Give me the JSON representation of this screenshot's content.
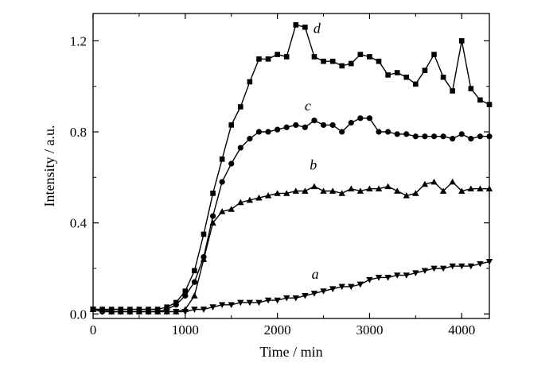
{
  "chart_data": {
    "type": "line",
    "xlabel": "Time / min",
    "ylabel": "Intensity / a.u.",
    "xlim": [
      0,
      4300
    ],
    "ylim": [
      -0.02,
      1.32
    ],
    "xticks": [
      0,
      1000,
      2000,
      3000,
      4000
    ],
    "yticks": [
      0.0,
      0.4,
      0.8,
      1.2
    ],
    "xtick_labels": [
      "0",
      "1000",
      "2000",
      "3000",
      "4000"
    ],
    "ytick_labels": [
      "0.0",
      "0.4",
      "0.8",
      "1.2"
    ],
    "grid": false,
    "series": [
      {
        "name": "a",
        "marker": "triangle-down",
        "x": [
          0,
          100,
          200,
          300,
          400,
          500,
          600,
          700,
          800,
          900,
          1000,
          1100,
          1200,
          1300,
          1400,
          1500,
          1600,
          1700,
          1800,
          1900,
          2000,
          2100,
          2200,
          2300,
          2400,
          2500,
          2600,
          2700,
          2800,
          2900,
          3000,
          3100,
          3200,
          3300,
          3400,
          3500,
          3600,
          3700,
          3800,
          3900,
          4000,
          4100,
          4200,
          4300
        ],
        "y": [
          0.02,
          0.01,
          0.01,
          0.01,
          0.01,
          0.01,
          0.01,
          0.01,
          0.01,
          0.01,
          0.01,
          0.02,
          0.02,
          0.03,
          0.04,
          0.04,
          0.05,
          0.05,
          0.05,
          0.06,
          0.06,
          0.07,
          0.07,
          0.08,
          0.09,
          0.1,
          0.11,
          0.12,
          0.12,
          0.13,
          0.15,
          0.16,
          0.16,
          0.17,
          0.17,
          0.18,
          0.19,
          0.2,
          0.2,
          0.21,
          0.21,
          0.21,
          0.22,
          0.23
        ]
      },
      {
        "name": "b",
        "marker": "triangle-up",
        "x": [
          0,
          100,
          200,
          300,
          400,
          500,
          600,
          700,
          800,
          900,
          1000,
          1100,
          1200,
          1300,
          1400,
          1500,
          1600,
          1700,
          1800,
          1900,
          2000,
          2100,
          2200,
          2300,
          2400,
          2500,
          2600,
          2700,
          2800,
          2900,
          3000,
          3100,
          3200,
          3300,
          3400,
          3500,
          3600,
          3700,
          3800,
          3900,
          4000,
          4100,
          4200,
          4300
        ],
        "y": [
          0.02,
          0.02,
          0.01,
          0.01,
          0.01,
          0.01,
          0.01,
          0.01,
          0.01,
          0.01,
          0.02,
          0.08,
          0.24,
          0.4,
          0.45,
          0.46,
          0.49,
          0.5,
          0.51,
          0.52,
          0.53,
          0.53,
          0.54,
          0.54,
          0.56,
          0.54,
          0.54,
          0.53,
          0.55,
          0.54,
          0.55,
          0.55,
          0.56,
          0.54,
          0.52,
          0.53,
          0.57,
          0.58,
          0.54,
          0.58,
          0.54,
          0.55,
          0.55,
          0.55
        ]
      },
      {
        "name": "c",
        "marker": "circle",
        "x": [
          0,
          100,
          200,
          300,
          400,
          500,
          600,
          700,
          800,
          900,
          1000,
          1100,
          1200,
          1300,
          1400,
          1500,
          1600,
          1700,
          1800,
          1900,
          2000,
          2100,
          2200,
          2300,
          2400,
          2500,
          2600,
          2700,
          2800,
          2900,
          3000,
          3100,
          3200,
          3300,
          3400,
          3500,
          3600,
          3700,
          3800,
          3900,
          4000,
          4100,
          4200,
          4300
        ],
        "y": [
          0.02,
          0.01,
          0.01,
          0.01,
          0.01,
          0.01,
          0.01,
          0.01,
          0.02,
          0.04,
          0.08,
          0.14,
          0.25,
          0.43,
          0.58,
          0.66,
          0.73,
          0.77,
          0.8,
          0.8,
          0.81,
          0.82,
          0.83,
          0.82,
          0.85,
          0.83,
          0.83,
          0.8,
          0.84,
          0.86,
          0.86,
          0.8,
          0.8,
          0.79,
          0.79,
          0.78,
          0.78,
          0.78,
          0.78,
          0.77,
          0.79,
          0.77,
          0.78,
          0.78
        ]
      },
      {
        "name": "d",
        "marker": "square",
        "x": [
          0,
          100,
          200,
          300,
          400,
          500,
          600,
          700,
          800,
          900,
          1000,
          1100,
          1200,
          1300,
          1400,
          1500,
          1600,
          1700,
          1800,
          1900,
          2000,
          2100,
          2200,
          2300,
          2400,
          2500,
          2600,
          2700,
          2800,
          2900,
          3000,
          3100,
          3200,
          3300,
          3400,
          3500,
          3600,
          3700,
          3800,
          3900,
          4000,
          4100,
          4200,
          4300
        ],
        "y": [
          0.02,
          0.02,
          0.02,
          0.02,
          0.02,
          0.02,
          0.02,
          0.02,
          0.03,
          0.05,
          0.1,
          0.19,
          0.35,
          0.53,
          0.68,
          0.83,
          0.91,
          1.02,
          1.12,
          1.12,
          1.14,
          1.13,
          1.27,
          1.26,
          1.13,
          1.11,
          1.11,
          1.09,
          1.1,
          1.14,
          1.13,
          1.11,
          1.05,
          1.06,
          1.04,
          1.01,
          1.07,
          1.14,
          1.04,
          0.98,
          1.2,
          0.99,
          0.94,
          0.92
        ]
      }
    ],
    "annotations": [
      {
        "text": "a",
        "x": 2410,
        "y": 0.155
      },
      {
        "text": "b",
        "x": 2390,
        "y": 0.635
      },
      {
        "text": "c",
        "x": 2330,
        "y": 0.895
      },
      {
        "text": "d",
        "x": 2430,
        "y": 1.235
      }
    ]
  }
}
